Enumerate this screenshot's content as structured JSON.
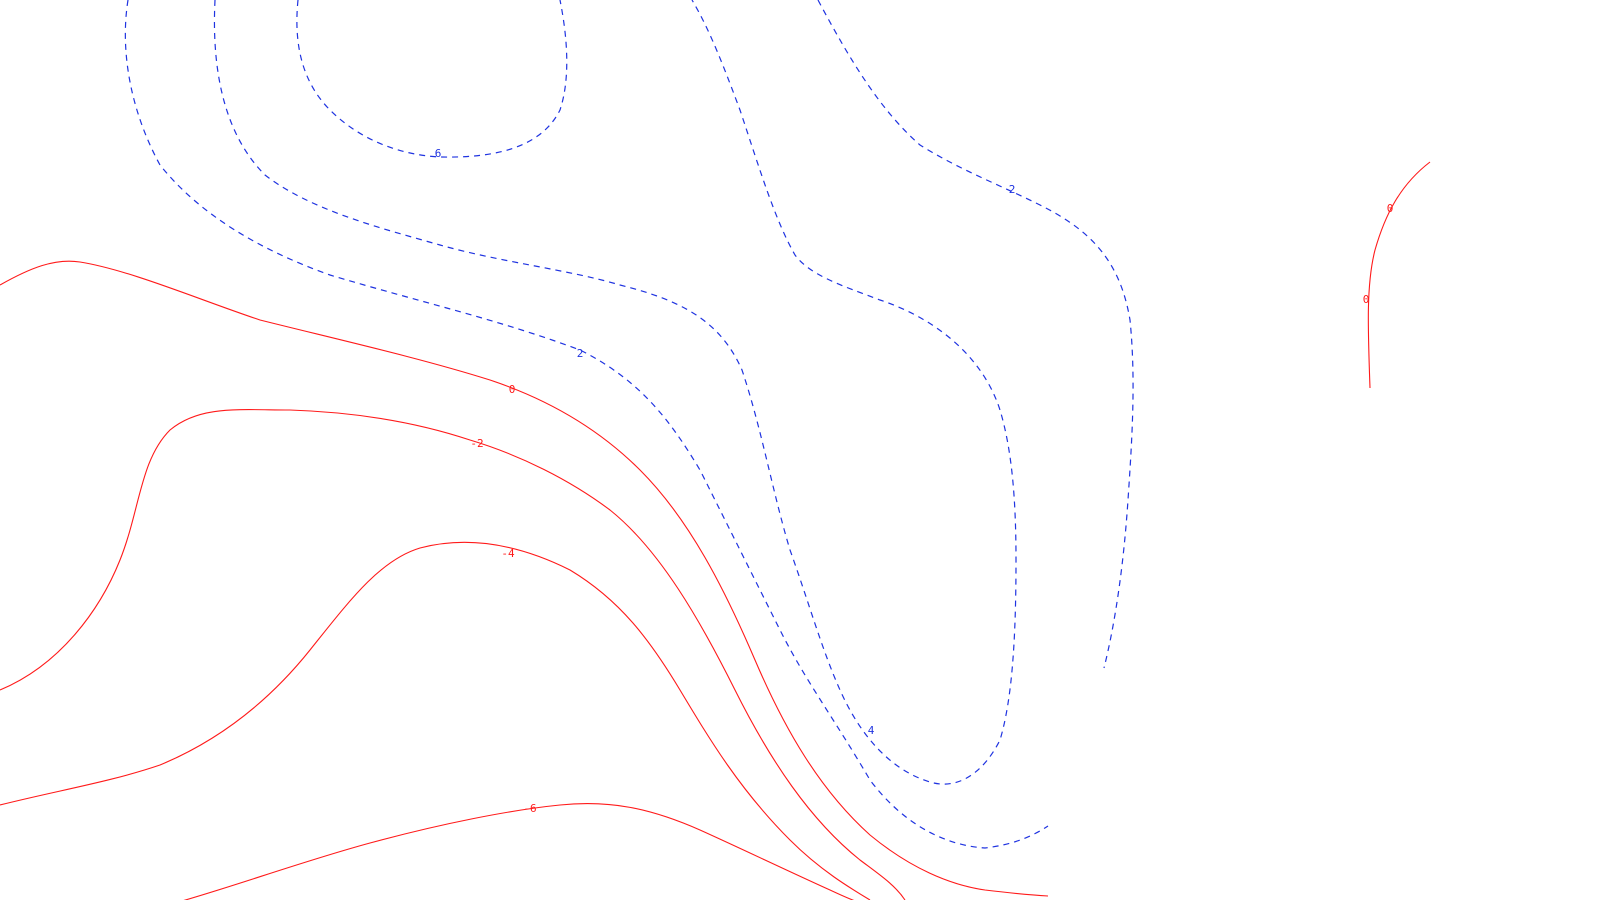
{
  "colors": {
    "positive": "#1f33e0",
    "negative": "#ff1a1a",
    "background": "#ffffff"
  },
  "contours": [
    {
      "id": "pos-6",
      "value": 6,
      "style": "dashed",
      "label": "6"
    },
    {
      "id": "pos-4-left",
      "value": 4,
      "style": "dashed",
      "label": ""
    },
    {
      "id": "pos-2-left",
      "value": 2,
      "style": "dashed",
      "label": "2"
    },
    {
      "id": "pos-4-center",
      "value": 4,
      "style": "dashed",
      "label": "4"
    },
    {
      "id": "pos-2-right",
      "value": 2,
      "style": "dashed",
      "label": "2"
    },
    {
      "id": "neg-0-main",
      "value": 0,
      "style": "solid",
      "label": "0"
    },
    {
      "id": "neg-2",
      "value": -2,
      "style": "solid",
      "label": "-2"
    },
    {
      "id": "neg-4",
      "value": -4,
      "style": "solid",
      "label": "-4"
    },
    {
      "id": "neg-6",
      "value": -6,
      "style": "solid",
      "label": "-6"
    },
    {
      "id": "zero-east",
      "value": 0,
      "style": "solid",
      "label": "0"
    }
  ],
  "extra_labels": [
    {
      "text": "0"
    }
  ]
}
